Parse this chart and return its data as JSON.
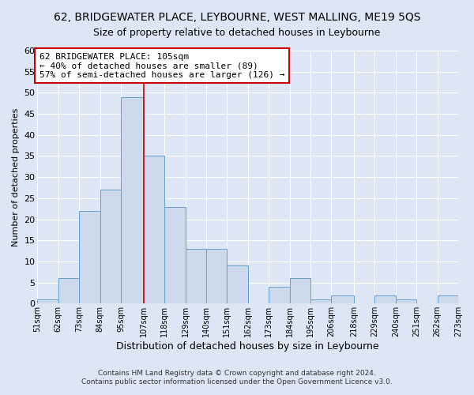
{
  "title1": "62, BRIDGEWATER PLACE, LEYBOURNE, WEST MALLING, ME19 5QS",
  "title2": "Size of property relative to detached houses in Leybourne",
  "xlabel": "Distribution of detached houses by size in Leybourne",
  "ylabel": "Number of detached properties",
  "bin_edges": [
    51,
    62,
    73,
    84,
    95,
    107,
    118,
    129,
    140,
    151,
    162,
    173,
    184,
    195,
    206,
    218,
    229,
    240,
    251,
    262,
    273
  ],
  "bar_heights": [
    1,
    6,
    22,
    27,
    49,
    35,
    23,
    13,
    13,
    9,
    0,
    4,
    6,
    1,
    2,
    0,
    2,
    1,
    0,
    2
  ],
  "bar_color": "#cdd9ec",
  "bar_edge_color": "#6b9dc8",
  "vline_x": 107,
  "vline_color": "#cc0000",
  "annotation_line1": "62 BRIDGEWATER PLACE: 105sqm",
  "annotation_line2": "← 40% of detached houses are smaller (89)",
  "annotation_line3": "57% of semi-detached houses are larger (126) →",
  "annotation_box_color": "#ffffff",
  "annotation_box_edge": "#cc0000",
  "ylim": [
    0,
    60
  ],
  "yticks": [
    0,
    5,
    10,
    15,
    20,
    25,
    30,
    35,
    40,
    45,
    50,
    55,
    60
  ],
  "tick_labels": [
    "51sqm",
    "62sqm",
    "73sqm",
    "84sqm",
    "95sqm",
    "107sqm",
    "118sqm",
    "129sqm",
    "140sqm",
    "151sqm",
    "162sqm",
    "173sqm",
    "184sqm",
    "195sqm",
    "206sqm",
    "218sqm",
    "229sqm",
    "240sqm",
    "251sqm",
    "262sqm",
    "273sqm"
  ],
  "footer1": "Contains HM Land Registry data © Crown copyright and database right 2024.",
  "footer2": "Contains public sector information licensed under the Open Government Licence v3.0.",
  "background_color": "#dce6f5",
  "plot_bg_color": "#dce6f5",
  "grid_color": "#ffffff",
  "title1_fontsize": 10,
  "title2_fontsize": 9
}
